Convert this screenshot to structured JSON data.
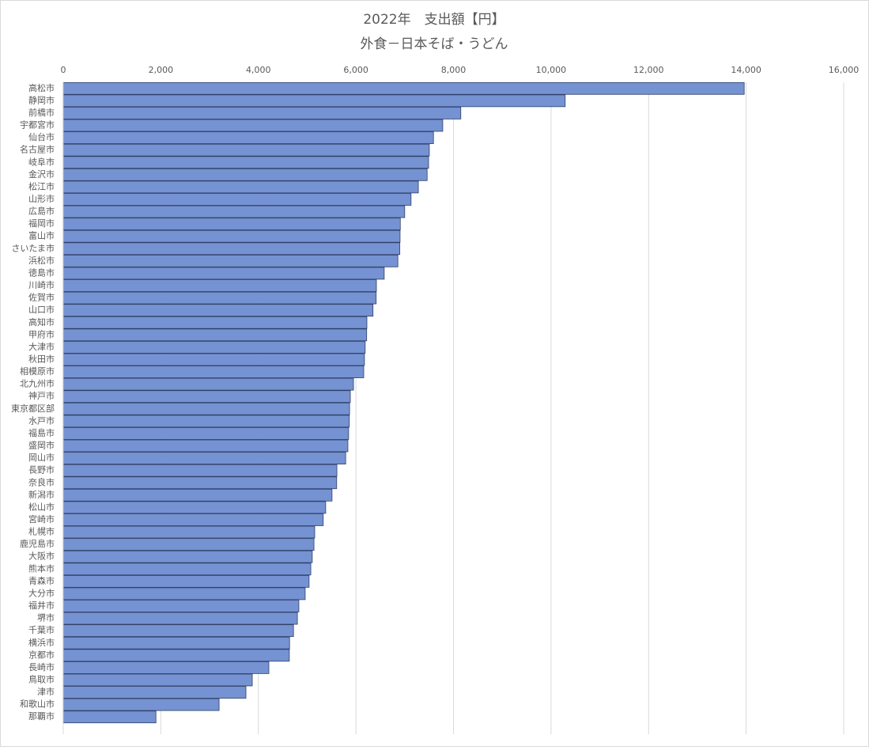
{
  "chart_data": {
    "type": "bar",
    "orientation": "horizontal",
    "title": "2022年　支出額【円】",
    "subtitle": "外食－日本そば・うどん",
    "categories": [
      "高松市",
      "静岡市",
      "前橋市",
      "宇都宮市",
      "仙台市",
      "名古屋市",
      "岐阜市",
      "金沢市",
      "松江市",
      "山形市",
      "広島市",
      "福岡市",
      "富山市",
      "さいたま市",
      "浜松市",
      "徳島市",
      "川崎市",
      "佐賀市",
      "山口市",
      "高知市",
      "甲府市",
      "大津市",
      "秋田市",
      "相模原市",
      "北九州市",
      "神戸市",
      "東京都区部",
      "水戸市",
      "福島市",
      "盛岡市",
      "岡山市",
      "長野市",
      "奈良市",
      "新潟市",
      "松山市",
      "宮崎市",
      "札幌市",
      "鹿児島市",
      "大阪市",
      "熊本市",
      "青森市",
      "大分市",
      "福井市",
      "堺市",
      "千葉市",
      "横浜市",
      "京都市",
      "長崎市",
      "鳥取市",
      "津市",
      "和歌山市",
      "那覇市"
    ],
    "values": [
      13960,
      10290,
      8150,
      7780,
      7590,
      7505,
      7490,
      7460,
      7280,
      7130,
      7000,
      6910,
      6905,
      6900,
      6860,
      6580,
      6420,
      6415,
      6350,
      6225,
      6220,
      6190,
      6175,
      6160,
      5950,
      5885,
      5870,
      5865,
      5850,
      5835,
      5790,
      5610,
      5605,
      5510,
      5380,
      5330,
      5155,
      5140,
      5105,
      5075,
      5040,
      4960,
      4830,
      4800,
      4720,
      4640,
      4635,
      4215,
      3875,
      3745,
      3195,
      1900
    ],
    "color": "#7592d2",
    "xlim": [
      0,
      16000
    ],
    "xticks": [
      0,
      {
        "value": 2000,
        "label": "2,000"
      },
      {
        "value": 4000,
        "label": "4,000"
      },
      {
        "value": 6000,
        "label": "6,000"
      },
      {
        "value": 8000,
        "label": "8,000"
      },
      {
        "value": 10000,
        "label": "10,000"
      },
      {
        "value": 12000,
        "label": "12,000"
      },
      {
        "value": 14000,
        "label": "14,000"
      },
      {
        "value": 16000,
        "label": "16,000"
      }
    ],
    "grid": true
  }
}
